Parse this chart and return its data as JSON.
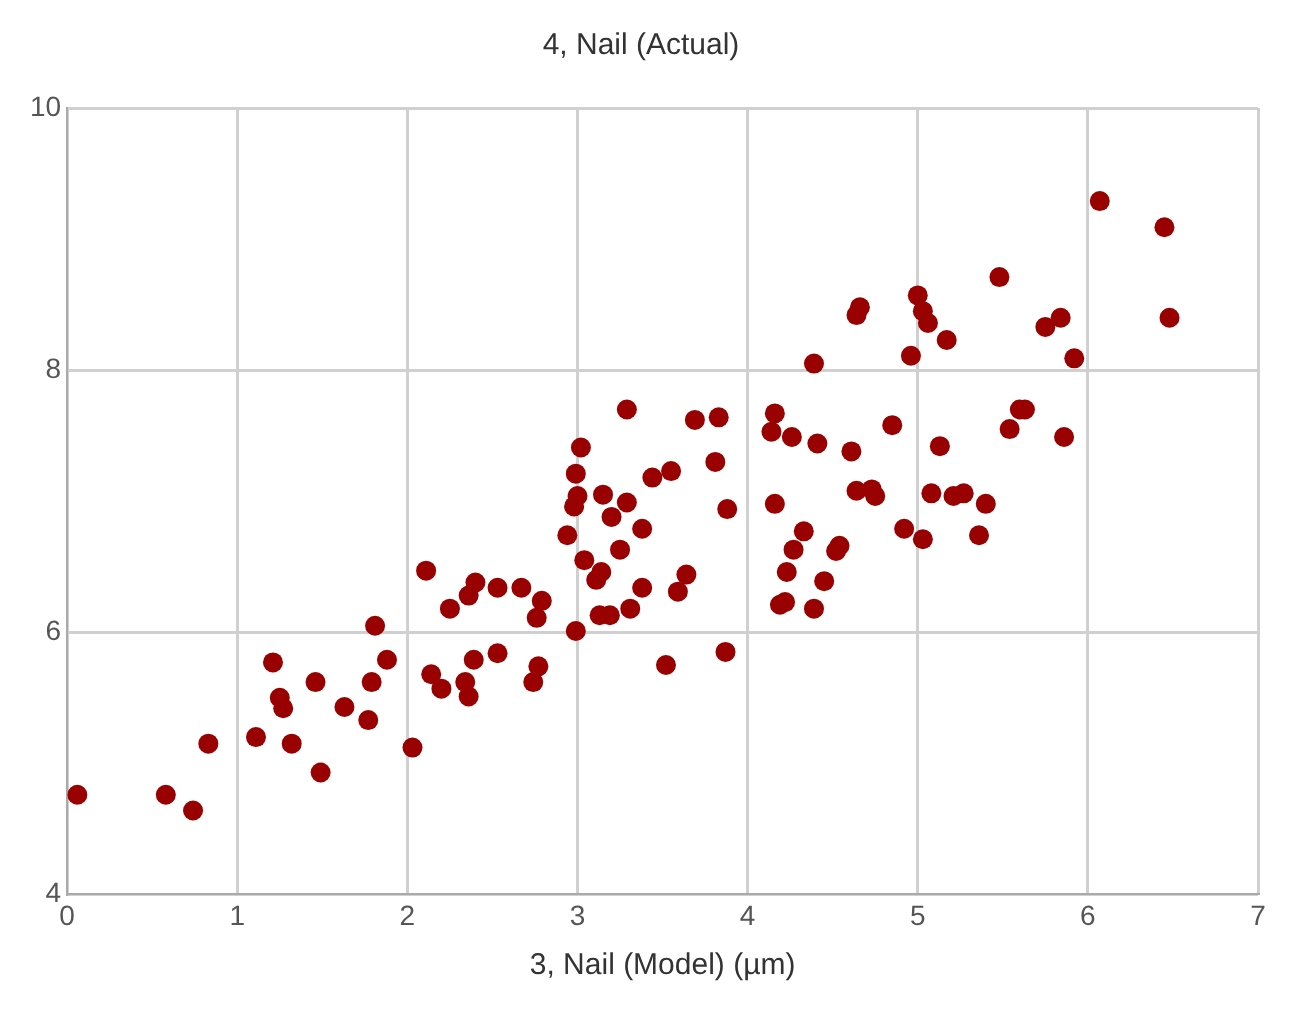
{
  "chart_data": {
    "type": "scatter",
    "title": "4, Nail (Actual)",
    "xlabel": "3, Nail (Model) (µm)",
    "xlim": [
      0,
      7
    ],
    "xticks": [
      0,
      1,
      2,
      3,
      4,
      5,
      6,
      7
    ],
    "ylim": [
      4,
      10
    ],
    "yticks": [
      4,
      6,
      8,
      10
    ],
    "grid": true,
    "legend": false,
    "marker": "circle",
    "series": [
      {
        "color": "#990000",
        "x": [
          0.06,
          0.58,
          0.74,
          0.83,
          1.11,
          1.21,
          1.25,
          1.27,
          1.46,
          1.32,
          1.49,
          1.63,
          1.79,
          1.77,
          1.81,
          1.88,
          2.03,
          2.11,
          2.14,
          2.2,
          2.25,
          2.36,
          2.4,
          2.53,
          2.67,
          2.79,
          2.76,
          2.39,
          2.53,
          2.34,
          2.36,
          2.77,
          2.74,
          2.99,
          2.94,
          2.98,
          3.0,
          2.99,
          3.02,
          3.04,
          3.15,
          3.2,
          3.29,
          3.38,
          3.25,
          3.14,
          3.11,
          3.13,
          3.19,
          3.31,
          3.38,
          3.44,
          3.55,
          3.64,
          3.59,
          3.29,
          3.69,
          3.83,
          3.81,
          3.88,
          3.87,
          3.52,
          4.16,
          4.14,
          4.26,
          4.41,
          4.39,
          4.61,
          4.16,
          4.33,
          4.27,
          4.23,
          4.19,
          4.22,
          4.39,
          4.45,
          4.52,
          4.54,
          4.64,
          4.73,
          4.75,
          4.85,
          4.92,
          5.03,
          5.13,
          5.08,
          5.21,
          5.27,
          5.4,
          5.36,
          4.96,
          5.0,
          5.03,
          5.06,
          5.17,
          4.64,
          4.66,
          6.07,
          6.45,
          6.48,
          5.48,
          5.75,
          5.84,
          5.92,
          5.6,
          5.63,
          5.54,
          5.86
        ],
        "values": [
          4.76,
          4.76,
          4.64,
          5.15,
          5.2,
          5.77,
          5.5,
          5.42,
          5.62,
          5.15,
          4.93,
          5.43,
          5.62,
          5.33,
          6.05,
          5.79,
          5.12,
          6.47,
          5.68,
          5.57,
          6.18,
          6.28,
          6.38,
          6.34,
          6.34,
          6.24,
          6.11,
          5.79,
          5.84,
          5.62,
          5.51,
          5.74,
          5.62,
          6.01,
          6.74,
          6.96,
          7.04,
          7.21,
          7.41,
          6.55,
          7.05,
          6.88,
          6.99,
          6.79,
          6.63,
          6.46,
          6.4,
          6.13,
          6.13,
          6.18,
          6.34,
          7.18,
          7.23,
          6.44,
          6.31,
          7.7,
          7.62,
          7.64,
          7.3,
          6.94,
          5.85,
          5.75,
          7.67,
          7.53,
          7.49,
          7.44,
          8.05,
          7.38,
          6.98,
          6.77,
          6.63,
          6.46,
          6.21,
          6.23,
          6.18,
          6.39,
          6.62,
          6.66,
          7.08,
          7.09,
          7.04,
          7.58,
          6.79,
          6.71,
          7.42,
          7.06,
          7.04,
          7.06,
          6.98,
          6.74,
          8.11,
          8.57,
          8.45,
          8.36,
          8.23,
          8.42,
          8.48,
          9.29,
          9.09,
          8.4,
          8.71,
          8.33,
          8.4,
          8.09,
          7.7,
          7.7,
          7.55,
          7.49
        ]
      }
    ]
  }
}
